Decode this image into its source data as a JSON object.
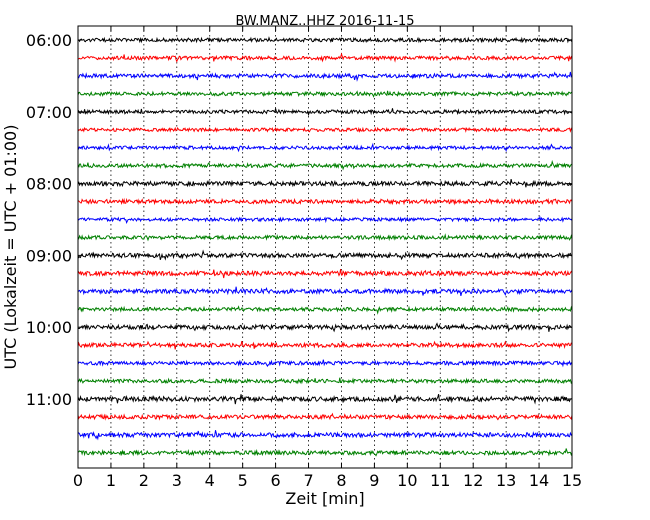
{
  "chart_data": {
    "type": "line",
    "title": "BW.MANZ..HHZ 2016-11-15",
    "xlabel": "Zeit  [min]",
    "ylabel": "UTC (Lokalzeit = UTC + 01:00)",
    "xlim": [
      0,
      15
    ],
    "x_ticks": [
      0,
      1,
      2,
      3,
      4,
      5,
      6,
      7,
      8,
      9,
      10,
      11,
      12,
      13,
      14,
      15
    ],
    "y_tick_labels": [
      "06:00",
      "07:00",
      "08:00",
      "09:00",
      "10:00",
      "11:00"
    ],
    "y_tick_trace_index": [
      0,
      4,
      8,
      12,
      16,
      20
    ],
    "trace_colors": [
      "#000000",
      "#ff0000",
      "#0000ff",
      "#008000"
    ],
    "trace_count": 24,
    "trace_interval_minutes": 15,
    "vertical_grid": "dotted",
    "grid_positions": [
      1,
      2,
      3,
      4,
      5,
      6,
      7,
      8,
      9,
      10,
      11,
      12,
      13,
      14
    ],
    "series": [
      {
        "start": "06:00",
        "color": "#000000",
        "amplitude": 0.1
      },
      {
        "start": "06:15",
        "color": "#ff0000",
        "amplitude": 0.1
      },
      {
        "start": "06:30",
        "color": "#0000ff",
        "amplitude": 0.11
      },
      {
        "start": "06:45",
        "color": "#008000",
        "amplitude": 0.1
      },
      {
        "start": "07:00",
        "color": "#000000",
        "amplitude": 0.1
      },
      {
        "start": "07:15",
        "color": "#ff0000",
        "amplitude": 0.09
      },
      {
        "start": "07:30",
        "color": "#0000ff",
        "amplitude": 0.09
      },
      {
        "start": "07:45",
        "color": "#008000",
        "amplitude": 0.1
      },
      {
        "start": "08:00",
        "color": "#000000",
        "amplitude": 0.12
      },
      {
        "start": "08:15",
        "color": "#ff0000",
        "amplitude": 0.11
      },
      {
        "start": "08:30",
        "color": "#0000ff",
        "amplitude": 0.09
      },
      {
        "start": "08:45",
        "color": "#008000",
        "amplitude": 0.1
      },
      {
        "start": "09:00",
        "color": "#000000",
        "amplitude": 0.12
      },
      {
        "start": "09:15",
        "color": "#ff0000",
        "amplitude": 0.12
      },
      {
        "start": "09:30",
        "color": "#0000ff",
        "amplitude": 0.12
      },
      {
        "start": "09:45",
        "color": "#008000",
        "amplitude": 0.1
      },
      {
        "start": "10:00",
        "color": "#000000",
        "amplitude": 0.12
      },
      {
        "start": "10:15",
        "color": "#ff0000",
        "amplitude": 0.11
      },
      {
        "start": "10:30",
        "color": "#0000ff",
        "amplitude": 0.1
      },
      {
        "start": "10:45",
        "color": "#008000",
        "amplitude": 0.1
      },
      {
        "start": "11:00",
        "color": "#000000",
        "amplitude": 0.13
      },
      {
        "start": "11:15",
        "color": "#ff0000",
        "amplitude": 0.11
      },
      {
        "start": "11:30",
        "color": "#0000ff",
        "amplitude": 0.12
      },
      {
        "start": "11:45",
        "color": "#008000",
        "amplitude": 0.11
      }
    ]
  }
}
